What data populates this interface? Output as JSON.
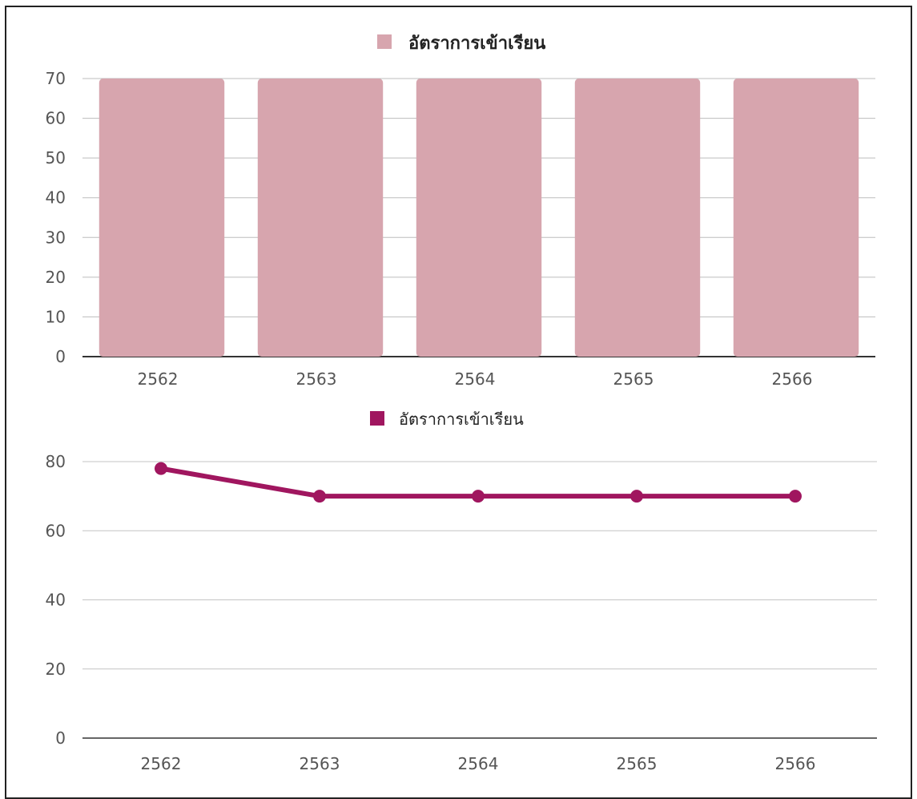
{
  "chart_data": [
    {
      "type": "bar",
      "categories": [
        "2562",
        "2563",
        "2564",
        "2565",
        "2566"
      ],
      "series": [
        {
          "name": "อัตราการเข้าเรียน",
          "values": [
            70,
            70,
            70,
            70,
            70
          ],
          "color": "#d7a5ae"
        }
      ],
      "ylim": [
        0,
        70
      ],
      "yticks": [
        "0",
        "10",
        "20",
        "30",
        "40",
        "50",
        "60",
        "70"
      ],
      "grid": true,
      "legend": "top-center"
    },
    {
      "type": "line",
      "categories": [
        "2562",
        "2563",
        "2564",
        "2565",
        "2566"
      ],
      "series": [
        {
          "name": "อัตราการเข้าเรียน",
          "values": [
            78,
            70,
            70,
            70,
            70
          ],
          "color": "#a0165f"
        }
      ],
      "ylim": [
        0,
        80
      ],
      "yticks": [
        "0",
        "20",
        "40",
        "60",
        "80"
      ],
      "grid": true,
      "legend": "top-center"
    }
  ]
}
